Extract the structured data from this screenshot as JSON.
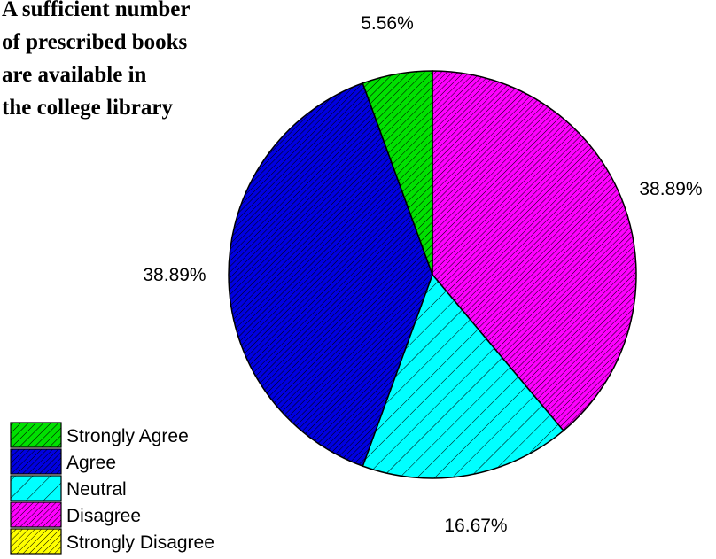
{
  "chart_data": {
    "type": "pie",
    "title_lines": [
      "A sufficient number",
      "of prescribed books",
      "are available in",
      "the college library"
    ],
    "categories": [
      "Strongly Agree",
      "Agree",
      "Neutral",
      "Disagree",
      "Strongly Disagree"
    ],
    "values": [
      5.56,
      38.89,
      16.67,
      38.89,
      0
    ],
    "value_labels": [
      "5.56%",
      "38.89%",
      "16.67%",
      "38.89%",
      ""
    ],
    "colors": [
      "#00e000",
      "#0000e0",
      "#00ffff",
      "#ff00ff",
      "#ffff00"
    ],
    "hatch": "diagonal",
    "legend_position": "bottom-left"
  }
}
